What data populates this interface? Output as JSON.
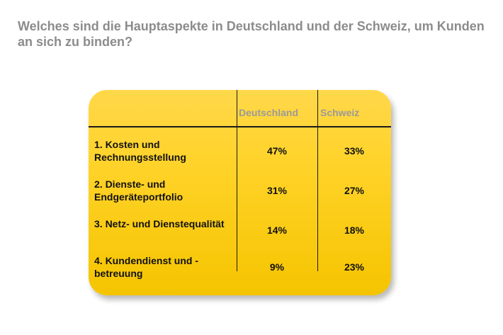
{
  "title": "Welches sind die Hauptaspekte in Deutschland und der Schweiz, um Kunden an sich zu binden?",
  "table": {
    "headers": [
      "Deutschland",
      "Schweiz"
    ],
    "rows": [
      {
        "label": "1. Kosten und Rechnungsstellung",
        "de": "47%",
        "ch": "33%"
      },
      {
        "label": "2. Dienste- und Endgeräteportfolio",
        "de": "31%",
        "ch": "27%"
      },
      {
        "label": "3. Netz- und Dienstequalität",
        "de": "14%",
        "ch": "18%"
      },
      {
        "label": "4. Kundendienst und -betreuung",
        "de": "9%",
        "ch": "23%"
      }
    ]
  },
  "colors": {
    "card": "#ffd32a",
    "title": "#8c8c8c",
    "header": "#9a9a9a"
  }
}
